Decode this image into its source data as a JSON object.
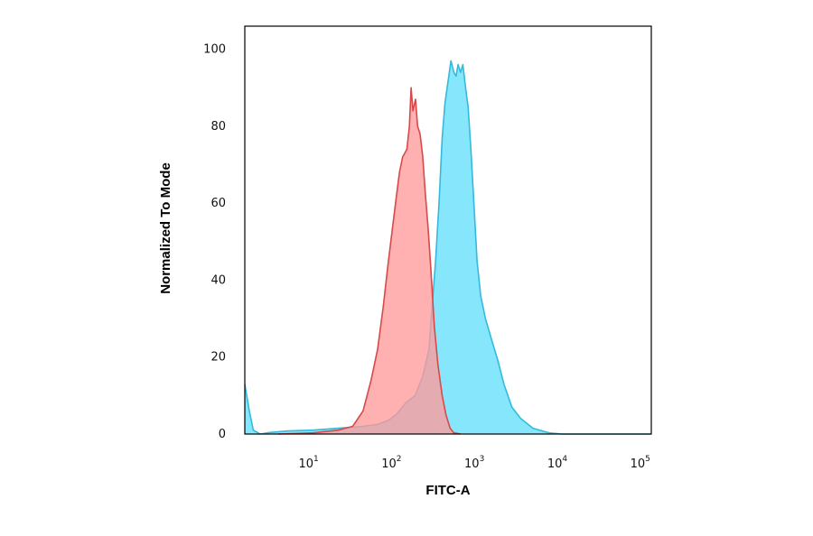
{
  "chart_data": {
    "type": "area",
    "xlabel": "FITC-A",
    "ylabel": "Normalized To Mode",
    "x_scale": "log",
    "xlim": [
      1.5,
      120000
    ],
    "ylim": [
      0,
      106
    ],
    "grid": false,
    "y_ticks": [
      {
        "value": 0,
        "label": "0"
      },
      {
        "value": 20,
        "label": "20"
      },
      {
        "value": 40,
        "label": "40"
      },
      {
        "value": 60,
        "label": "60"
      },
      {
        "value": 80,
        "label": "80"
      },
      {
        "value": 100,
        "label": "100"
      }
    ],
    "x_ticks": [
      {
        "value": 10,
        "base": "10",
        "exp": "1"
      },
      {
        "value": 100,
        "base": "10",
        "exp": "2"
      },
      {
        "value": 1000,
        "base": "10",
        "exp": "3"
      },
      {
        "value": 10000,
        "base": "10",
        "exp": "4"
      },
      {
        "value": 100000,
        "base": "10",
        "exp": "5"
      }
    ],
    "series": [
      {
        "color_fill": "#ff9a9a",
        "color_line": "#d84a4a",
        "points": [
          [
            3.8,
            0
          ],
          [
            10,
            0.3
          ],
          [
            20,
            1
          ],
          [
            30,
            2
          ],
          [
            40,
            6
          ],
          [
            50,
            14
          ],
          [
            60,
            22
          ],
          [
            70,
            33
          ],
          [
            80,
            44
          ],
          [
            90,
            53
          ],
          [
            100,
            61
          ],
          [
            110,
            68
          ],
          [
            120,
            72
          ],
          [
            135,
            74
          ],
          [
            145,
            80
          ],
          [
            152,
            90
          ],
          [
            160,
            84
          ],
          [
            172,
            87
          ],
          [
            182,
            80
          ],
          [
            195,
            78
          ],
          [
            210,
            72
          ],
          [
            225,
            63
          ],
          [
            245,
            53
          ],
          [
            265,
            42
          ],
          [
            290,
            28
          ],
          [
            320,
            18
          ],
          [
            360,
            10
          ],
          [
            400,
            5
          ],
          [
            450,
            1.5
          ],
          [
            500,
            0.3
          ],
          [
            600,
            0
          ]
        ]
      },
      {
        "color_fill": "#7fe6fc",
        "color_line": "#35b9dc",
        "points": [
          [
            1.5,
            13
          ],
          [
            1.7,
            6
          ],
          [
            1.9,
            1
          ],
          [
            2.3,
            0
          ],
          [
            3,
            0.4
          ],
          [
            5,
            0.8
          ],
          [
            10,
            1
          ],
          [
            20,
            1.5
          ],
          [
            40,
            2
          ],
          [
            60,
            2.5
          ],
          [
            80,
            3.5
          ],
          [
            100,
            5
          ],
          [
            130,
            8
          ],
          [
            170,
            10
          ],
          [
            210,
            15
          ],
          [
            250,
            22
          ],
          [
            270,
            32
          ],
          [
            300,
            45
          ],
          [
            330,
            60
          ],
          [
            360,
            77
          ],
          [
            390,
            86
          ],
          [
            420,
            91
          ],
          [
            460,
            97
          ],
          [
            500,
            94
          ],
          [
            530,
            93
          ],
          [
            560,
            96
          ],
          [
            600,
            94
          ],
          [
            640,
            96
          ],
          [
            690,
            90
          ],
          [
            740,
            85
          ],
          [
            800,
            74
          ],
          [
            870,
            60
          ],
          [
            950,
            45
          ],
          [
            1050,
            36
          ],
          [
            1200,
            30
          ],
          [
            1400,
            25
          ],
          [
            1700,
            19
          ],
          [
            2000,
            13
          ],
          [
            2500,
            7
          ],
          [
            3200,
            4
          ],
          [
            4500,
            1.5
          ],
          [
            7000,
            0.3
          ],
          [
            10000,
            0
          ],
          [
            120000,
            0
          ]
        ]
      }
    ]
  }
}
